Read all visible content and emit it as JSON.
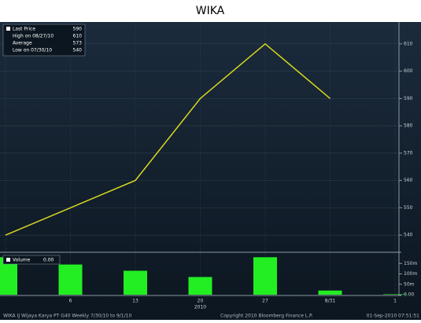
{
  "chart_data": [
    {
      "type": "line",
      "title": "WIKA",
      "categories": [
        null,
        "6",
        "13",
        "20",
        "27",
        "8/31",
        "1"
      ],
      "x_sublabel": "2010",
      "series": [
        {
          "name": "Last Price",
          "color": "#d8d820",
          "values": [
            540,
            550,
            560,
            590,
            610,
            590,
            null
          ]
        }
      ],
      "legend_stats": [
        {
          "label": "Last Price",
          "value": 590
        },
        {
          "label": "High on 08/27/10",
          "value": 610
        },
        {
          "label": "Average",
          "value": 573
        },
        {
          "label": "Low on 07/30/10",
          "value": 540
        }
      ],
      "ylim": [
        534,
        618
      ],
      "yticks": [
        540,
        550,
        560,
        570,
        580,
        590,
        600,
        610
      ],
      "grid": true
    },
    {
      "type": "bar",
      "series": [
        {
          "name": "Volume",
          "color": "#22ee22",
          "values": [
            180,
            145,
            115,
            85,
            180,
            20,
            2
          ]
        }
      ],
      "legend_value": {
        "value": 0,
        "label": "0.00"
      },
      "ylim": [
        0,
        200
      ],
      "yticks": [
        {
          "value": 150,
          "label": "150m"
        },
        {
          "value": 100,
          "label": "100m"
        },
        {
          "value": 50,
          "label": "50m"
        },
        {
          "value": 0,
          "label": "0.00"
        }
      ]
    }
  ],
  "footer": [
    "WIKA IJ  Wijaya Karya PT    G40   Weekly  7/30/10 to 9/1/10",
    "Copyright 2010 Bloomberg Finance L.P.",
    "01-Sep-2010 07:51:51"
  ]
}
